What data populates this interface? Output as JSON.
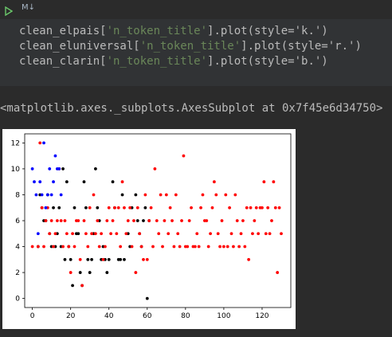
{
  "toolbar": {
    "cell_type_label": "M↓",
    "run_icon": "play-icon"
  },
  "code": {
    "lines": [
      {
        "prefix": "clean_elpais[",
        "string": "'n_token_title'",
        "suffix": "].plot(style='k.')"
      },
      {
        "prefix": "clean_eluniversal[",
        "string": "'n_token_title'",
        "suffix": "].plot(style='r.')"
      },
      {
        "prefix": "clean_clarin[",
        "string": "'n_token_title'",
        "suffix": "].plot(style='b.')"
      }
    ]
  },
  "output": {
    "text": "<matplotlib.axes._subplots.AxesSubplot at 0x7f45e6d34750>"
  },
  "colors": {
    "black_series": "#000000",
    "red_series": "#ff0000",
    "blue_series": "#0000ff",
    "code_bg": "#313335",
    "page_bg": "#2b2b2b"
  },
  "chart_data": {
    "type": "scatter",
    "title": "",
    "xlabel": "",
    "ylabel": "",
    "xlim": [
      -4,
      135
    ],
    "ylim": [
      -0.7,
      12.7
    ],
    "x_ticks": [
      "0",
      "20",
      "40",
      "60",
      "80",
      "100",
      "120"
    ],
    "y_ticks": [
      "0",
      "2",
      "4",
      "6",
      "8",
      "10",
      "12"
    ],
    "series": [
      {
        "style": "k.",
        "color": "#000000",
        "points": [
          [
            3,
            4
          ],
          [
            4,
            8
          ],
          [
            5,
            7
          ],
          [
            6,
            6
          ],
          [
            7,
            6
          ],
          [
            8,
            8
          ],
          [
            9,
            5
          ],
          [
            10,
            4
          ],
          [
            11,
            7
          ],
          [
            12,
            4
          ],
          [
            13,
            5
          ],
          [
            14,
            7
          ],
          [
            15,
            4
          ],
          [
            16,
            10
          ],
          [
            17,
            3
          ],
          [
            18,
            9
          ],
          [
            19,
            4
          ],
          [
            20,
            3
          ],
          [
            21,
            1
          ],
          [
            22,
            7
          ],
          [
            23,
            5
          ],
          [
            24,
            5
          ],
          [
            25,
            2
          ],
          [
            26,
            1
          ],
          [
            27,
            9
          ],
          [
            28,
            7
          ],
          [
            29,
            3
          ],
          [
            30,
            2
          ],
          [
            31,
            3
          ],
          [
            32,
            5
          ],
          [
            33,
            10
          ],
          [
            34,
            7
          ],
          [
            35,
            6
          ],
          [
            36,
            3
          ],
          [
            37,
            4
          ],
          [
            38,
            3
          ],
          [
            39,
            2
          ],
          [
            40,
            3
          ],
          [
            42,
            9
          ],
          [
            43,
            7
          ],
          [
            45,
            3
          ],
          [
            46,
            3
          ],
          [
            47,
            8
          ],
          [
            48,
            3
          ],
          [
            50,
            5
          ],
          [
            51,
            4
          ],
          [
            52,
            7
          ],
          [
            54,
            8
          ],
          [
            55,
            6
          ],
          [
            56,
            5
          ],
          [
            57,
            4
          ],
          [
            58,
            6
          ],
          [
            59,
            7
          ],
          [
            60,
            0
          ],
          [
            61,
            6
          ]
        ]
      },
      {
        "style": "r.",
        "color": "#ff0000",
        "points": [
          [
            0,
            4
          ],
          [
            3,
            4
          ],
          [
            4,
            12
          ],
          [
            5,
            7
          ],
          [
            6,
            4
          ],
          [
            7,
            6
          ],
          [
            8,
            7
          ],
          [
            9,
            5
          ],
          [
            10,
            6
          ],
          [
            11,
            4
          ],
          [
            12,
            5
          ],
          [
            13,
            6
          ],
          [
            14,
            10
          ],
          [
            15,
            6
          ],
          [
            16,
            4
          ],
          [
            17,
            6
          ],
          [
            18,
            5
          ],
          [
            19,
            4
          ],
          [
            20,
            2
          ],
          [
            21,
            5
          ],
          [
            22,
            4
          ],
          [
            23,
            6
          ],
          [
            24,
            6
          ],
          [
            25,
            3
          ],
          [
            26,
            1
          ],
          [
            27,
            6
          ],
          [
            28,
            5
          ],
          [
            29,
            4
          ],
          [
            30,
            7
          ],
          [
            31,
            5
          ],
          [
            32,
            8
          ],
          [
            33,
            5
          ],
          [
            34,
            6
          ],
          [
            35,
            4
          ],
          [
            36,
            5
          ],
          [
            37,
            3
          ],
          [
            38,
            4
          ],
          [
            39,
            6
          ],
          [
            40,
            7
          ],
          [
            41,
            5
          ],
          [
            42,
            6
          ],
          [
            43,
            7
          ],
          [
            44,
            5
          ],
          [
            45,
            7
          ],
          [
            46,
            4
          ],
          [
            47,
            9
          ],
          [
            48,
            7
          ],
          [
            49,
            5
          ],
          [
            50,
            6
          ],
          [
            51,
            7
          ],
          [
            52,
            4
          ],
          [
            53,
            6
          ],
          [
            54,
            2
          ],
          [
            55,
            7
          ],
          [
            56,
            5
          ],
          [
            57,
            4
          ],
          [
            58,
            3
          ],
          [
            59,
            8
          ],
          [
            60,
            3
          ],
          [
            61,
            6
          ],
          [
            62,
            7
          ],
          [
            63,
            4
          ],
          [
            64,
            10
          ],
          [
            65,
            6
          ],
          [
            66,
            5
          ],
          [
            67,
            8
          ],
          [
            68,
            4
          ],
          [
            69,
            6
          ],
          [
            70,
            8
          ],
          [
            71,
            5
          ],
          [
            72,
            7
          ],
          [
            73,
            6
          ],
          [
            74,
            4
          ],
          [
            75,
            8
          ],
          [
            76,
            5
          ],
          [
            77,
            4
          ],
          [
            78,
            6
          ],
          [
            79,
            11
          ],
          [
            80,
            4
          ],
          [
            81,
            4
          ],
          [
            82,
            6
          ],
          [
            83,
            7
          ],
          [
            84,
            4
          ],
          [
            85,
            4
          ],
          [
            86,
            5
          ],
          [
            87,
            4
          ],
          [
            88,
            7
          ],
          [
            89,
            8
          ],
          [
            90,
            6
          ],
          [
            91,
            6
          ],
          [
            92,
            4
          ],
          [
            93,
            5
          ],
          [
            94,
            7
          ],
          [
            95,
            9
          ],
          [
            96,
            8
          ],
          [
            97,
            5
          ],
          [
            98,
            4
          ],
          [
            99,
            6
          ],
          [
            100,
            4
          ],
          [
            101,
            8
          ],
          [
            102,
            4
          ],
          [
            103,
            7
          ],
          [
            104,
            5
          ],
          [
            105,
            4
          ],
          [
            106,
            8
          ],
          [
            107,
            6
          ],
          [
            108,
            4
          ],
          [
            109,
            5
          ],
          [
            110,
            6
          ],
          [
            111,
            4
          ],
          [
            112,
            7
          ],
          [
            113,
            3
          ],
          [
            114,
            7
          ],
          [
            115,
            5
          ],
          [
            116,
            6
          ],
          [
            117,
            7
          ],
          [
            118,
            5
          ],
          [
            119,
            7
          ],
          [
            120,
            7
          ],
          [
            121,
            9
          ],
          [
            122,
            5
          ],
          [
            123,
            7
          ],
          [
            124,
            5
          ],
          [
            125,
            6
          ],
          [
            126,
            9
          ],
          [
            127,
            7
          ],
          [
            128,
            2
          ],
          [
            129,
            7
          ],
          [
            130,
            5
          ]
        ]
      },
      {
        "style": "b.",
        "color": "#0000ff",
        "points": [
          [
            0,
            10
          ],
          [
            1,
            9
          ],
          [
            2,
            8
          ],
          [
            3,
            5
          ],
          [
            4,
            9
          ],
          [
            5,
            8
          ],
          [
            6,
            12
          ],
          [
            7,
            7
          ],
          [
            8,
            8
          ],
          [
            9,
            10
          ],
          [
            10,
            8
          ],
          [
            11,
            9
          ],
          [
            12,
            11
          ],
          [
            13,
            10
          ],
          [
            14,
            10
          ],
          [
            15,
            8
          ]
        ]
      }
    ]
  }
}
